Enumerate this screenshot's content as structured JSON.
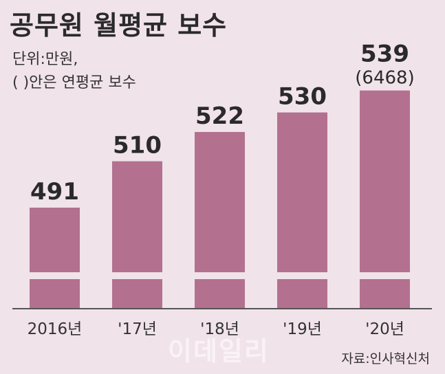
{
  "header": {
    "title": "공무원 월평균 보수",
    "unit_line1": "단위:만원,",
    "unit_line2": "( )안은 연평균 보수"
  },
  "chart_data": {
    "type": "bar",
    "title": "공무원 월평균 보수",
    "categories": [
      "2016년",
      "'17년",
      "'18년",
      "'19년",
      "'20년"
    ],
    "values": [
      491,
      510,
      522,
      530,
      539
    ],
    "annotations": [
      {
        "category": "'20년",
        "text": "(6468)"
      }
    ],
    "xlabel": "",
    "ylabel": "",
    "axis_break": true,
    "colors": {
      "bar": "#b3718f",
      "background": "#f1e3ea"
    }
  },
  "source": "자료:인사혁신처",
  "watermark": "이데일리"
}
